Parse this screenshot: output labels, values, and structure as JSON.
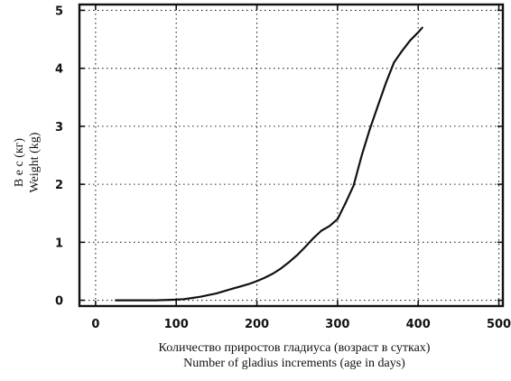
{
  "chart_data": {
    "type": "line",
    "title": "",
    "xlabel_ru": "Количество приростов гладиуса (возраст в сутках)",
    "xlabel_en": "Number of gladius increments (age in days)",
    "ylabel_ru": "В е с   (кг)",
    "ylabel_en": "Weight (kg)",
    "xlim": [
      -20,
      505
    ],
    "ylim": [
      -0.1,
      5.1
    ],
    "xticks": [
      0,
      100,
      200,
      300,
      400,
      500
    ],
    "yticks": [
      0,
      1,
      2,
      3,
      4,
      5
    ],
    "grid": true,
    "series": [
      {
        "name": "",
        "x": [
          25,
          50,
          75,
          100,
          110,
          120,
          130,
          140,
          150,
          160,
          170,
          180,
          190,
          200,
          210,
          220,
          230,
          240,
          250,
          260,
          270,
          280,
          290,
          300,
          310,
          320,
          330,
          340,
          350,
          360,
          370,
          380,
          390,
          400,
          405
        ],
        "y": [
          0.0,
          0.0,
          0.0,
          0.01,
          0.02,
          0.04,
          0.06,
          0.09,
          0.12,
          0.16,
          0.2,
          0.24,
          0.28,
          0.33,
          0.39,
          0.46,
          0.55,
          0.66,
          0.78,
          0.92,
          1.07,
          1.2,
          1.28,
          1.4,
          1.68,
          1.98,
          2.5,
          2.95,
          3.35,
          3.75,
          4.1,
          4.3,
          4.48,
          4.62,
          4.7
        ]
      }
    ]
  }
}
